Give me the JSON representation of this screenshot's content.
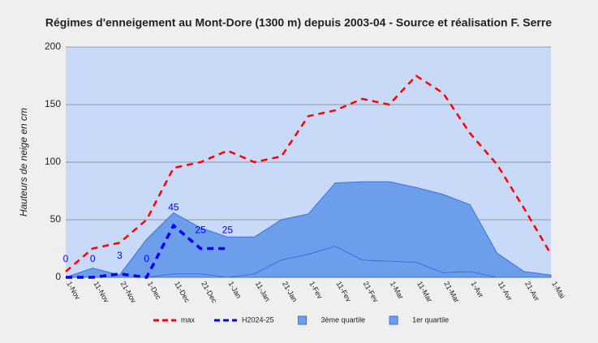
{
  "chart_data": {
    "type": "line_area",
    "title": "Régimes d'enneigement au Mont-Dore (1300 m) depuis 2003-04 - Source et réalisation F. Serre",
    "y_label": "Hauteurs de neige en cm",
    "categories": [
      "1-Nov",
      "11-Nov",
      "21-Nov",
      "1-Dec",
      "11-Dec",
      "21-Dec",
      "1-Jan",
      "11-Jan",
      "21-Jan",
      "1-Fev",
      "11-Fev",
      "21-Fev",
      "1-Mar",
      "11-Mar",
      "21-Mar",
      "1-Avr",
      "11-Avr",
      "21-Avr",
      "1-Mai"
    ],
    "series": [
      {
        "name": "max",
        "color": "#ff0000",
        "kind": "dashed-line",
        "values": [
          5,
          25,
          30,
          50,
          95,
          100,
          110,
          100,
          105,
          140,
          145,
          155,
          150,
          175,
          160,
          125,
          98,
          60,
          20
        ]
      },
      {
        "name": "H2024-25",
        "color": "#0000ff",
        "kind": "dashed-line",
        "data_labels": true,
        "values": [
          0,
          0,
          3,
          0,
          45,
          25,
          25,
          null,
          null,
          null,
          null,
          null,
          null,
          null,
          null,
          null,
          null,
          null,
          null
        ]
      },
      {
        "name": "3ème quartile",
        "color": "#6d9eeb",
        "kind": "area",
        "values": [
          0,
          8,
          2,
          33,
          56,
          43,
          35,
          35,
          50,
          55,
          82,
          83,
          83,
          78,
          72,
          63,
          21,
          5,
          2
        ]
      },
      {
        "name": "1er quartile",
        "color": "#6d9eeb",
        "kind": "area",
        "values": [
          0,
          0,
          0,
          0,
          3,
          3,
          0,
          3,
          15,
          20,
          27,
          15,
          14,
          13,
          4,
          5,
          0,
          0,
          0
        ]
      }
    ],
    "ylim": [
      0,
      200
    ],
    "yticks": [
      0,
      50,
      100,
      150,
      200
    ],
    "grid": true,
    "legend": "bottom"
  }
}
